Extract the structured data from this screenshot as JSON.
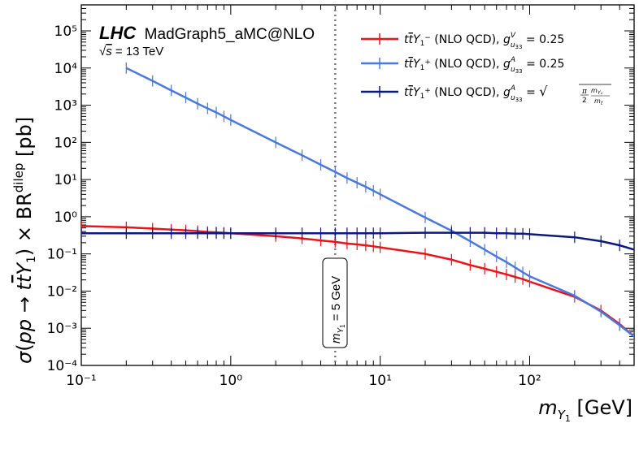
{
  "chart_data": {
    "type": "line",
    "title": "",
    "xlabel": "m_{Y1} [GeV]",
    "ylabel": "σ(pp → t t̄ Y1) × BR^dilep [pb]",
    "xscale": "log",
    "yscale": "log",
    "xlim": [
      0.1,
      500
    ],
    "ylim": [
      0.0001,
      500000
    ],
    "x_ticks": [
      {
        "value": 0.1,
        "label": "10⁻¹"
      },
      {
        "value": 1,
        "label": "10⁰"
      },
      {
        "value": 10,
        "label": "10¹"
      },
      {
        "value": 100,
        "label": "10²"
      }
    ],
    "y_ticks": [
      {
        "value": 0.0001,
        "label": "10⁻⁴"
      },
      {
        "value": 0.001,
        "label": "10⁻³"
      },
      {
        "value": 0.01,
        "label": "10⁻²"
      },
      {
        "value": 0.1,
        "label": "10⁻¹"
      },
      {
        "value": 1,
        "label": "10⁰"
      },
      {
        "value": 10,
        "label": "10¹"
      },
      {
        "value": 100,
        "label": "10²"
      },
      {
        "value": 1000,
        "label": "10³"
      },
      {
        "value": 10000,
        "label": "10⁴"
      },
      {
        "value": 100000,
        "label": "10⁵"
      }
    ],
    "grid": false,
    "legend_position": "top-right",
    "annotations": {
      "experiment": "LHC",
      "generator": "MadGraph5_aMC@NLO",
      "energy": "√s = 13 TeV",
      "vline_label": "m_{Y1} = 5 GeV",
      "vline_x": 5
    },
    "series": [
      {
        "name": "t t̄ Y1⁻ (NLO QCD), g^V_{u33} = 0.25",
        "color": "#e8141b",
        "x": [
          0.1,
          0.2,
          0.3,
          0.4,
          0.5,
          0.6,
          0.7,
          0.8,
          0.9,
          1,
          2,
          3,
          4,
          5,
          6,
          7,
          8,
          9,
          10,
          20,
          30,
          40,
          50,
          60,
          70,
          80,
          90,
          100,
          200,
          300,
          400,
          500
        ],
        "y": [
          0.56,
          0.52,
          0.48,
          0.45,
          0.43,
          0.41,
          0.39,
          0.38,
          0.37,
          0.36,
          0.3,
          0.26,
          0.23,
          0.21,
          0.19,
          0.18,
          0.17,
          0.16,
          0.15,
          0.1,
          0.07,
          0.05,
          0.04,
          0.033,
          0.028,
          0.024,
          0.021,
          0.018,
          0.007,
          0.003,
          0.0013,
          0.0006
        ]
      },
      {
        "name": "t t̄ Y1⁺ (NLO QCD), g^A_{u33} = 0.25",
        "color": "#4a78dc",
        "x": [
          0.2,
          0.3,
          0.4,
          0.5,
          0.6,
          0.7,
          0.8,
          0.9,
          1,
          2,
          3,
          4,
          5,
          6,
          7,
          8,
          9,
          10,
          20,
          30,
          40,
          50,
          60,
          70,
          80,
          90,
          100,
          200,
          300,
          400,
          500
        ],
        "y": [
          10000,
          4500,
          2500,
          1600,
          1100,
          820,
          640,
          500,
          400,
          100,
          45,
          25,
          16,
          11,
          8.2,
          6.4,
          5,
          4,
          0.95,
          0.42,
          0.22,
          0.13,
          0.085,
          0.06,
          0.043,
          0.032,
          0.025,
          0.0075,
          0.0028,
          0.0012,
          0.0006
        ]
      },
      {
        "name": "t t̄ Y1⁺ (NLO QCD), g^A_{u33} = √(π/2 · m_{Y1}/m_t)",
        "color": "#0c1a7d",
        "x": [
          0.1,
          0.2,
          0.3,
          0.4,
          0.5,
          0.6,
          0.7,
          0.8,
          0.9,
          1,
          2,
          3,
          4,
          5,
          6,
          7,
          8,
          9,
          10,
          20,
          30,
          40,
          50,
          60,
          70,
          80,
          90,
          100,
          200,
          300,
          400,
          500
        ],
        "y": [
          0.36,
          0.36,
          0.36,
          0.36,
          0.36,
          0.36,
          0.36,
          0.36,
          0.36,
          0.36,
          0.36,
          0.36,
          0.36,
          0.36,
          0.36,
          0.36,
          0.36,
          0.36,
          0.36,
          0.37,
          0.37,
          0.37,
          0.37,
          0.36,
          0.36,
          0.35,
          0.35,
          0.34,
          0.28,
          0.22,
          0.17,
          0.13
        ]
      }
    ]
  }
}
